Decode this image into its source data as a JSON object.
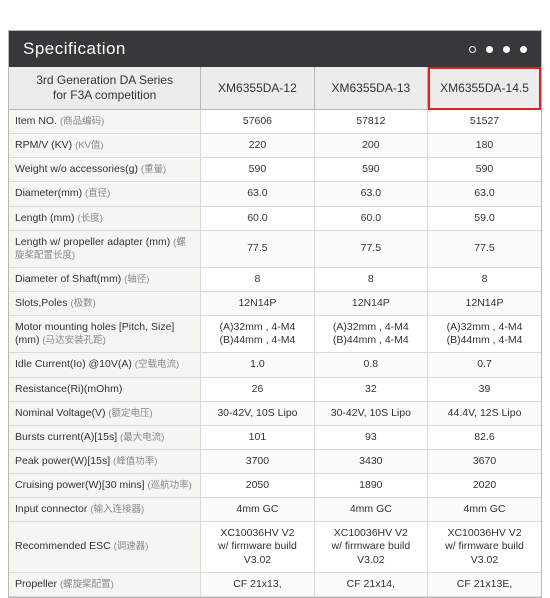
{
  "header": {
    "title": "Specification"
  },
  "colors": {
    "header_bg": "#38383a",
    "header_text": "#ffffff",
    "grid_border": "#b8b8b8",
    "row_border": "#d9d9d6",
    "label_bg": "#f5f5f2",
    "highlight": "#e02020",
    "zh_text": "#888888"
  },
  "columns": {
    "subtitle_line1": "3rd Generation DA Series",
    "subtitle_line2": "for F3A competition",
    "models": [
      "XM6355DA-12",
      "XM6355DA-13",
      "XM6355DA-14.5"
    ],
    "highlight_index": 2
  },
  "rows": [
    {
      "label": "Item NO.",
      "zh": "(商品编码)",
      "v": [
        "57606",
        "57812",
        "51527"
      ]
    },
    {
      "label": "RPM/V (KV)",
      "zh": "(KV值)",
      "v": [
        "220",
        "200",
        "180"
      ]
    },
    {
      "label": "Weight w/o accessories(g)",
      "zh": "(重量)",
      "v": [
        "590",
        "590",
        "590"
      ]
    },
    {
      "label": "Diameter(mm)",
      "zh": "(直径)",
      "v": [
        "63.0",
        "63.0",
        "63.0"
      ]
    },
    {
      "label": "Length (mm)",
      "zh": "(长度)",
      "v": [
        "60.0",
        "60.0",
        "59.0"
      ]
    },
    {
      "label": "Length w/ propeller adapter (mm)",
      "zh": "(螺旋桨配置长度)",
      "v": [
        "77.5",
        "77.5",
        "77.5"
      ]
    },
    {
      "label": "Diameter of Shaft(mm)",
      "zh": "(轴径)",
      "v": [
        "8",
        "8",
        "8"
      ]
    },
    {
      "label": "Slots,Poles",
      "zh": "(极数)",
      "v": [
        "12N14P",
        "12N14P",
        "12N14P"
      ]
    },
    {
      "label": "Motor mounting holes [Pitch, Size] (mm)",
      "zh": "(马达安装孔距)",
      "two_line": true,
      "v": [
        "(A)32mm , 4-M4\n(B)44mm , 4-M4",
        "(A)32mm , 4-M4\n(B)44mm , 4-M4",
        "(A)32mm , 4-M4\n(B)44mm , 4-M4"
      ]
    },
    {
      "label": "Idle Current(Io) @10V(A)",
      "zh": "(空载电流)",
      "v": [
        "1.0",
        "0.8",
        "0.7"
      ]
    },
    {
      "label": "Resistance(Ri)(mOhm)",
      "zh": "",
      "v": [
        "26",
        "32",
        "39"
      ]
    },
    {
      "label": "Nominal Voltage(V)",
      "zh": "(额定电压)",
      "v": [
        "30-42V, 10S Lipo",
        "30-42V, 10S Lipo",
        "44.4V, 12S Lipo"
      ]
    },
    {
      "label": "Bursts current(A)[15s]",
      "zh": "(最大电流)",
      "v": [
        "101",
        "93",
        "82.6"
      ]
    },
    {
      "label": "Peak power(W)[15s]",
      "zh": "(峰值功率)",
      "v": [
        "3700",
        "3430",
        "3670"
      ]
    },
    {
      "label": "Cruising power(W)[30 mins]",
      "zh": "(巡航功率)",
      "v": [
        "2050",
        "1890",
        "2020"
      ]
    },
    {
      "label": "Input connector",
      "zh": "(输入连接器)",
      "v": [
        "4mm GC",
        "4mm GC",
        "4mm GC"
      ]
    },
    {
      "label": "Recommended ESC",
      "zh": "(调速器)",
      "two_line": true,
      "v": [
        "XC10036HV V2\nw/ firmware build V3.02",
        "XC10036HV V2\nw/ firmware build V3.02",
        "XC10036HV V2\nw/ firmware build V3.02"
      ]
    },
    {
      "label": "Propeller",
      "zh": "(螺旋桨配置)",
      "v": [
        "CF 21x13,",
        "CF 21x14,",
        "CF 21x13E,"
      ]
    }
  ]
}
